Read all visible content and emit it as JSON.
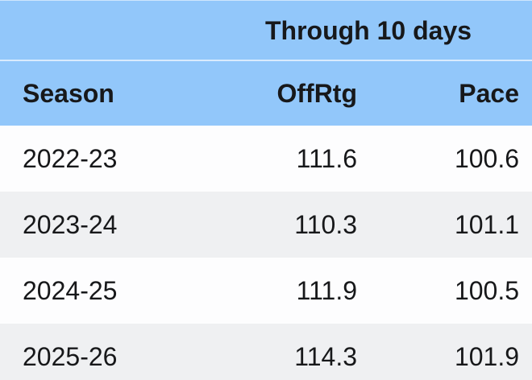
{
  "table": {
    "span_header": "Through 10 days",
    "columns": [
      {
        "label": "Season"
      },
      {
        "label": "OffRtg"
      },
      {
        "label": "Pace"
      }
    ],
    "rows": [
      {
        "season": "2022-23",
        "offrtg": "111.6",
        "pace": "100.6"
      },
      {
        "season": "2023-24",
        "offrtg": "110.3",
        "pace": "101.1"
      },
      {
        "season": "2024-25",
        "offrtg": "111.9",
        "pace": "100.5"
      },
      {
        "season": "2025-26",
        "offrtg": "114.3",
        "pace": "101.9"
      }
    ],
    "colors": {
      "header_bg": "#92C7FA",
      "row_bg": "#FDFDFE",
      "row_alt_bg": "#EFF0F2",
      "text": "#17181A"
    }
  },
  "chart_data": {
    "type": "table",
    "title": "Through 10 days",
    "columns": [
      "Season",
      "OffRtg",
      "Pace"
    ],
    "rows": [
      [
        "2022-23",
        111.6,
        100.6
      ],
      [
        "2023-24",
        110.3,
        101.1
      ],
      [
        "2024-25",
        111.9,
        100.5
      ],
      [
        "2025-26",
        114.3,
        101.9
      ]
    ],
    "layout": {
      "header_band": "blue",
      "zebra_striping": true,
      "legend_position": "none",
      "grid": false
    }
  }
}
